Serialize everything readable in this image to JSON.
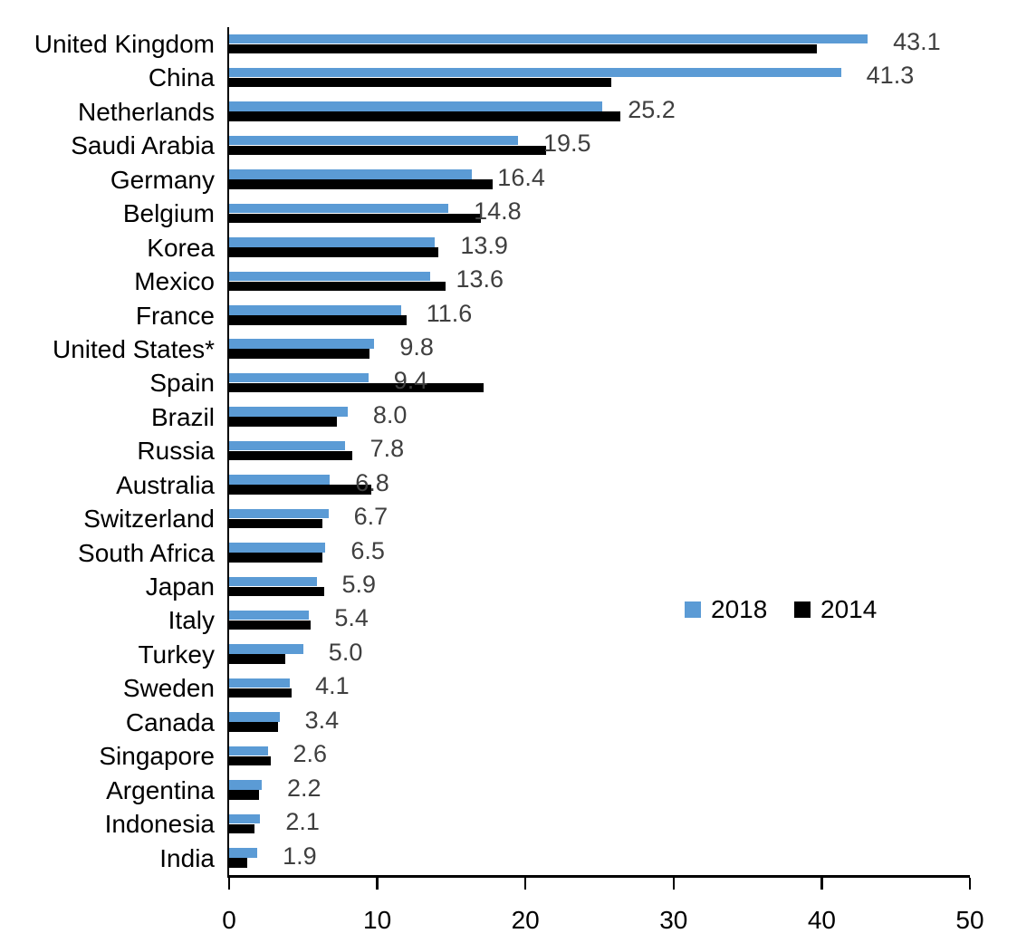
{
  "chart_data": {
    "type": "bar",
    "orientation": "horizontal",
    "title": "",
    "xlabel": "",
    "ylabel": "",
    "xlim": [
      0,
      50
    ],
    "x_ticks": [
      0,
      10,
      20,
      30,
      40,
      50
    ],
    "grid": false,
    "legend_position": "middle-right",
    "categories": [
      "United Kingdom",
      "China",
      "Netherlands",
      "Saudi Arabia",
      "Germany",
      "Belgium",
      "Korea",
      "Mexico",
      "France",
      "United States*",
      "Spain",
      "Brazil",
      "Russia",
      "Australia",
      "Switzerland",
      "South Africa",
      "Japan",
      "Italy",
      "Turkey",
      "Sweden",
      "Canada",
      "Singapore",
      "Argentina",
      "Indonesia",
      "India"
    ],
    "series": [
      {
        "name": "2018",
        "color": "#5B9BD5",
        "values": [
          43.1,
          41.3,
          25.2,
          19.5,
          16.4,
          14.8,
          13.9,
          13.6,
          11.6,
          9.8,
          9.4,
          8.0,
          7.8,
          6.8,
          6.7,
          6.5,
          5.9,
          5.4,
          5.0,
          4.1,
          3.4,
          2.6,
          2.2,
          2.1,
          1.9
        ],
        "data_labels": [
          "43.1",
          "41.3",
          "25.2",
          "19.5",
          "16.4",
          "14.8",
          "13.9",
          "13.6",
          "11.6",
          "9.8",
          "9.4",
          "8.0",
          "7.8",
          "6.8",
          "6.7",
          "6.5",
          "5.9",
          "5.4",
          "5.0",
          "4.1",
          "3.4",
          "2.6",
          "2.2",
          "2.1",
          "1.9"
        ]
      },
      {
        "name": "2014",
        "color": "#000000",
        "values": [
          39.7,
          25.8,
          26.4,
          21.4,
          17.8,
          17.0,
          14.1,
          14.6,
          12.0,
          9.5,
          17.2,
          7.3,
          8.3,
          9.6,
          6.3,
          6.3,
          6.4,
          5.5,
          3.8,
          4.2,
          3.3,
          2.8,
          2.0,
          1.7,
          1.2
        ]
      }
    ],
    "colors": {
      "series_2018": "#5B9BD5",
      "series_2014": "#000000",
      "value_label_text": "#3f3f3f",
      "axis_text": "#000000"
    }
  }
}
